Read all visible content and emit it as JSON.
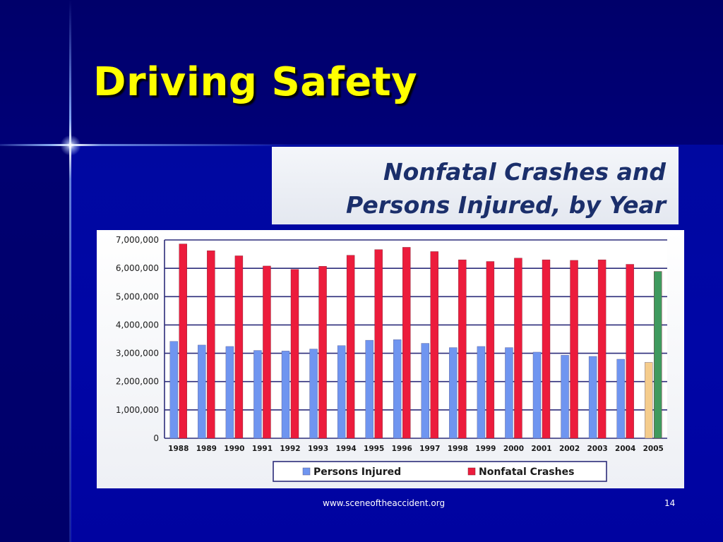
{
  "slide": {
    "title": "Driving Safety",
    "footer_url": "www.sceneoftheaccident.org",
    "page_number": "14"
  },
  "colors": {
    "background": "#000080",
    "title": "#ffff00",
    "injured": "#6f95f0",
    "crashes": "#ec1c3c",
    "injured_2005": "#f5cc8c",
    "crashes_2005": "#3f9a5e"
  },
  "chart_data": {
    "type": "bar",
    "title_line1": "Nonfatal Crashes and",
    "title_line2": "Persons Injured, by Year",
    "categories": [
      "1988",
      "1989",
      "1990",
      "1991",
      "1992",
      "1993",
      "1994",
      "1995",
      "1996",
      "1997",
      "1998",
      "1999",
      "2000",
      "2001",
      "2002",
      "2003",
      "2004",
      "2005"
    ],
    "series": [
      {
        "name": "Persons Injured",
        "values": [
          3420000,
          3290000,
          3240000,
          3100000,
          3080000,
          3150000,
          3270000,
          3460000,
          3480000,
          3350000,
          3200000,
          3240000,
          3200000,
          3040000,
          2930000,
          2890000,
          2790000,
          2680000
        ]
      },
      {
        "name": "Nonfatal Crashes",
        "values": [
          6860000,
          6620000,
          6440000,
          6080000,
          5960000,
          6070000,
          6460000,
          6660000,
          6740000,
          6590000,
          6300000,
          6240000,
          6360000,
          6300000,
          6280000,
          6300000,
          6140000,
          5890000
        ]
      }
    ],
    "y_ticks": [
      "0",
      "1,000,000",
      "2,000,000",
      "3,000,000",
      "4,000,000",
      "5,000,000",
      "6,000,000",
      "7,000,000"
    ],
    "ylim": [
      0,
      7000000
    ],
    "grid": true,
    "legend_position": "bottom"
  }
}
